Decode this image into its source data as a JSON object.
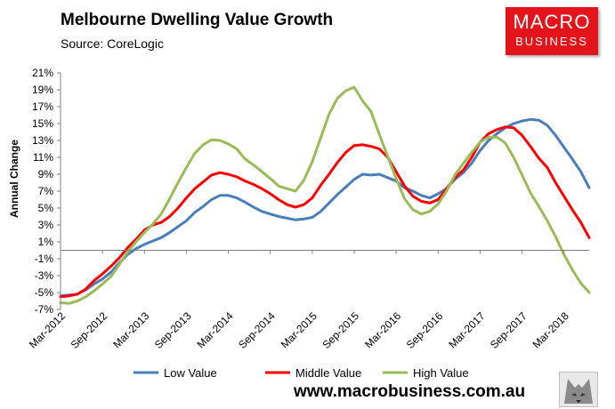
{
  "header": {
    "title": "Melbourne Dwelling Value Growth",
    "subtitle": "Source: CoreLogic"
  },
  "logo": {
    "line1": "MACRO",
    "line2": "BUSINESS"
  },
  "footer": {
    "url": "www.macrobusiness.com.au",
    "icon": "wolf-icon"
  },
  "chart_data": {
    "type": "line",
    "title": "Melbourne Dwelling Value Growth",
    "ylabel": "Annual Change",
    "xlabel": "",
    "ylim": [
      -7,
      21
    ],
    "yticks": [
      "21%",
      "19%",
      "17%",
      "15%",
      "13%",
      "11%",
      "9%",
      "7%",
      "5%",
      "3%",
      "1%",
      "-1%",
      "-3%",
      "-5%",
      "-7%"
    ],
    "xticks": [
      "Mar-2012",
      "Sep-2012",
      "Mar-2013",
      "Sep-2013",
      "Mar-2014",
      "Sep-2014",
      "Mar-2015",
      "Sep-2015",
      "Mar-2016",
      "Sep-2016",
      "Mar-2017",
      "Sep-2017",
      "Mar-2018"
    ],
    "x_start": "Mar-2012",
    "grid": false,
    "legend_position": "bottom",
    "series": [
      {
        "name": "Low Value",
        "color": "#4a7ebb",
        "values": [
          -5.4,
          -5.3,
          -5.2,
          -4.7,
          -4.0,
          -3.4,
          -2.6,
          -1.5,
          -0.5,
          0.2,
          0.7,
          1.1,
          1.5,
          2.1,
          2.8,
          3.5,
          4.5,
          5.2,
          6.0,
          6.5,
          6.5,
          6.2,
          5.7,
          5.1,
          4.6,
          4.3,
          4.0,
          3.8,
          3.6,
          3.7,
          3.9,
          4.6,
          5.6,
          6.6,
          7.5,
          8.4,
          9.0,
          8.9,
          9.0,
          8.6,
          8.2,
          7.4,
          7.0,
          6.5,
          6.2,
          6.7,
          7.3,
          8.4,
          9.2,
          10.3,
          11.8,
          13.0,
          13.8,
          14.5,
          15.0,
          15.3,
          15.5,
          15.4,
          14.8,
          13.6,
          12.2,
          10.8,
          9.3,
          7.4
        ]
      },
      {
        "name": "Middle Value",
        "color": "#ff0000",
        "values": [
          -5.5,
          -5.4,
          -5.2,
          -4.6,
          -3.6,
          -2.8,
          -1.9,
          -0.9,
          0.3,
          1.3,
          2.4,
          3.0,
          3.3,
          4.0,
          5.0,
          6.2,
          7.3,
          8.1,
          8.9,
          9.2,
          9.0,
          8.7,
          8.2,
          7.8,
          7.3,
          6.7,
          6.0,
          5.4,
          5.1,
          5.4,
          6.2,
          7.7,
          9.0,
          10.4,
          11.6,
          12.4,
          12.5,
          12.3,
          12.0,
          11.0,
          9.3,
          7.6,
          6.4,
          5.8,
          5.6,
          6.0,
          7.3,
          8.6,
          9.5,
          11.0,
          12.8,
          13.8,
          14.3,
          14.6,
          14.5,
          13.6,
          12.3,
          10.9,
          9.8,
          8.0,
          6.4,
          4.8,
          3.3,
          1.5
        ]
      },
      {
        "name": "High Value",
        "color": "#9bbb59",
        "values": [
          -6.2,
          -6.3,
          -6.0,
          -5.5,
          -4.8,
          -4.0,
          -3.1,
          -1.7,
          -0.2,
          1.0,
          2.1,
          3.1,
          4.3,
          6.1,
          8.0,
          9.8,
          11.5,
          12.5,
          13.1,
          13.0,
          12.6,
          12.0,
          10.8,
          10.1,
          9.3,
          8.5,
          7.6,
          7.3,
          7.0,
          8.3,
          10.5,
          13.3,
          16.1,
          18.0,
          18.9,
          19.3,
          17.7,
          16.4,
          13.7,
          11.1,
          8.5,
          6.1,
          4.8,
          4.3,
          4.6,
          5.5,
          7.0,
          8.9,
          10.3,
          11.6,
          12.8,
          13.4,
          13.4,
          12.7,
          11.0,
          8.9,
          6.8,
          5.2,
          3.5,
          1.6,
          -0.5,
          -2.3,
          -3.9,
          -5.0
        ]
      }
    ]
  }
}
